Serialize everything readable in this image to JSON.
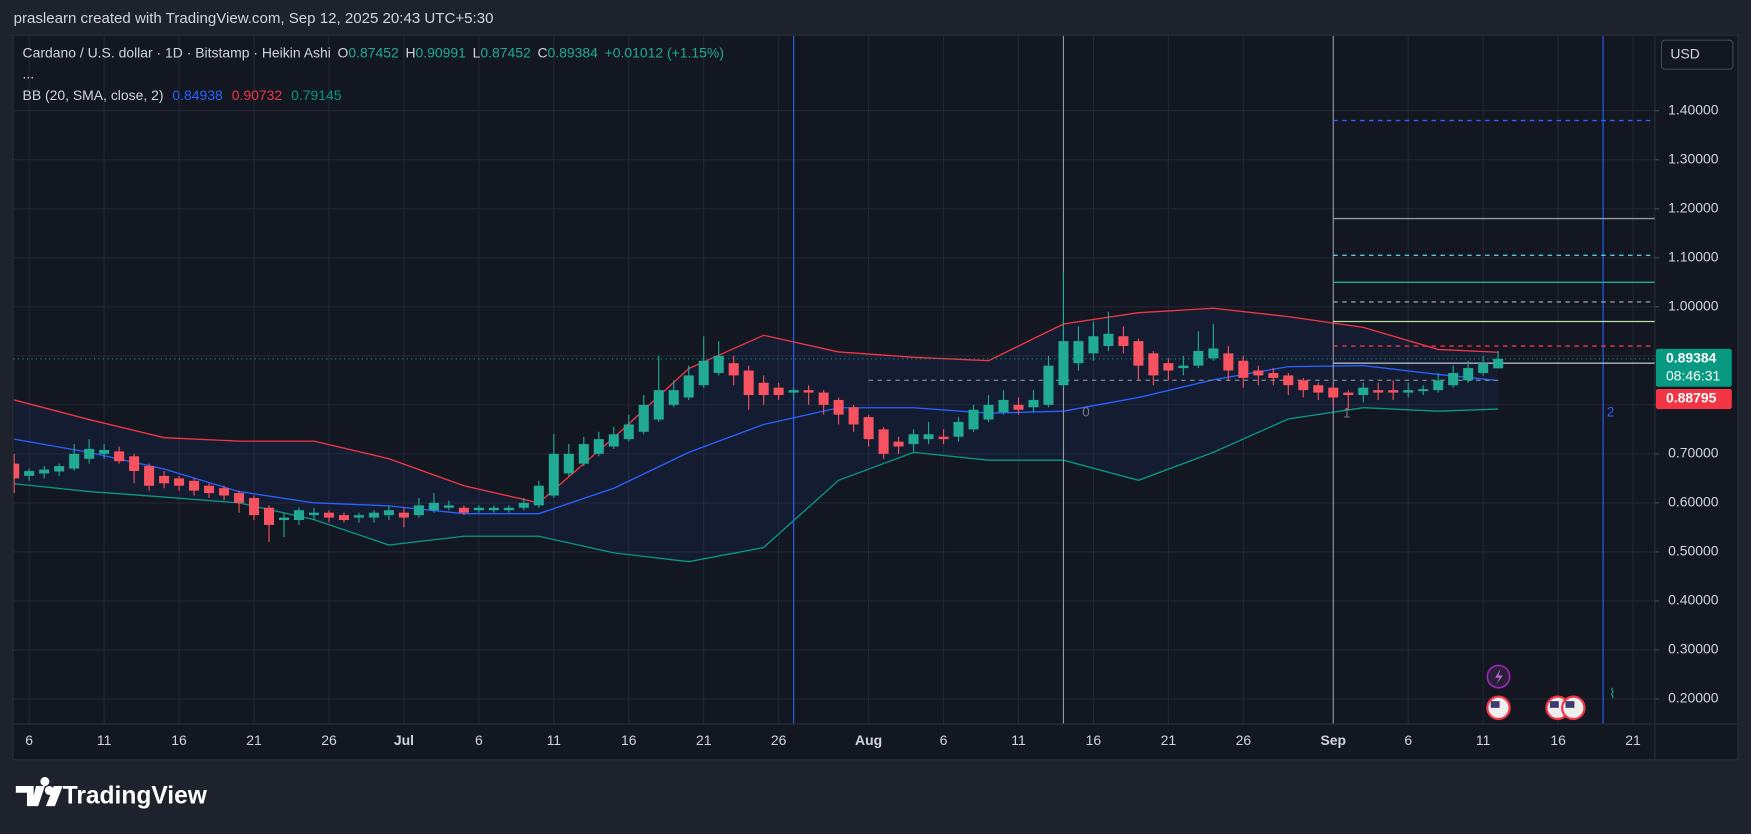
{
  "header": {
    "credit": "praslearn created with TradingView.com, Sep 12, 2025 20:43 UTC+5:30",
    "brand": "TradingView"
  },
  "chart_data": {
    "type": "candlestick",
    "title": "Cardano / U.S. dollar · 1D · Bitstamp · Heikin Ashi",
    "legend_keys": [
      "O",
      "H",
      "L",
      "C"
    ],
    "change": "+0.01012 (+1.15%)",
    "more": "...",
    "currency": "USD",
    "categories": [
      null,
      "6",
      null,
      null,
      null,
      null,
      "11",
      null,
      null,
      null,
      null,
      "16",
      null,
      null,
      null,
      null,
      "21",
      null,
      null,
      null,
      null,
      "26",
      null,
      null,
      null,
      null,
      "Jul",
      null,
      null,
      null,
      null,
      "6",
      null,
      null,
      null,
      null,
      "11",
      null,
      null,
      null,
      null,
      "16",
      null,
      null,
      null,
      null,
      "21",
      null,
      null,
      null,
      null,
      "26",
      null,
      null,
      null,
      null,
      null,
      "Aug",
      null,
      null,
      null,
      null,
      "6",
      null,
      null,
      null,
      null,
      "11",
      null,
      null,
      null,
      null,
      "16",
      null,
      null,
      null,
      null,
      "21",
      null,
      null,
      null,
      null,
      "26",
      null,
      null,
      null,
      null,
      null,
      "Sep",
      null,
      null,
      null,
      null,
      "6",
      null,
      null,
      null,
      null,
      "11",
      null,
      null,
      null,
      null,
      "16",
      null,
      null,
      null,
      null,
      "21"
    ],
    "open": [
      0.68,
      0.655,
      0.66,
      0.664,
      0.67,
      0.69,
      0.7,
      0.705,
      0.695,
      0.675,
      0.655,
      0.65,
      0.645,
      0.635,
      0.63,
      0.62,
      0.61,
      0.59,
      0.565,
      0.565,
      0.575,
      0.58,
      0.575,
      0.57,
      0.57,
      0.575,
      0.58,
      0.575,
      0.585,
      0.59,
      0.59,
      0.585,
      0.585,
      0.585,
      0.59,
      0.595,
      0.615,
      0.66,
      0.68,
      0.7,
      0.715,
      0.73,
      0.745,
      0.77,
      0.8,
      0.815,
      0.84,
      0.865,
      0.885,
      0.87,
      0.845,
      0.835,
      0.825,
      0.83,
      0.825,
      0.81,
      0.795,
      0.775,
      0.75,
      0.725,
      0.72,
      0.73,
      0.735,
      0.735,
      0.75,
      0.77,
      0.785,
      0.8,
      0.795,
      0.8,
      0.84,
      0.885,
      0.905,
      0.92,
      0.94,
      0.93,
      0.905,
      0.885,
      0.875,
      0.88,
      0.895,
      0.905,
      0.89,
      0.87,
      0.865,
      0.86,
      0.85,
      0.84,
      0.835,
      0.825,
      0.82,
      0.83,
      0.83,
      0.825,
      0.828,
      0.83,
      0.84,
      0.85,
      0.865,
      0.87452,
      null,
      null,
      null,
      null,
      null,
      null,
      null,
      null,
      null
    ],
    "high": [
      0.7,
      0.67,
      0.675,
      0.68,
      0.72,
      0.73,
      0.72,
      0.715,
      0.7,
      0.68,
      0.665,
      0.655,
      0.65,
      0.64,
      0.635,
      0.625,
      0.615,
      0.595,
      0.58,
      0.59,
      0.59,
      0.585,
      0.58,
      0.58,
      0.585,
      0.595,
      0.59,
      0.61,
      0.62,
      0.605,
      0.595,
      0.595,
      0.595,
      0.595,
      0.61,
      0.645,
      0.74,
      0.72,
      0.735,
      0.745,
      0.755,
      0.78,
      0.82,
      0.9,
      0.85,
      0.88,
      0.94,
      0.93,
      0.9,
      0.88,
      0.86,
      0.845,
      0.835,
      0.84,
      0.83,
      0.815,
      0.8,
      0.78,
      0.755,
      0.735,
      0.75,
      0.765,
      0.75,
      0.775,
      0.8,
      0.82,
      0.83,
      0.815,
      0.83,
      0.9,
      1.07,
      0.96,
      0.97,
      0.99,
      0.96,
      0.935,
      0.91,
      0.895,
      0.9,
      0.95,
      0.965,
      0.92,
      0.9,
      0.88,
      0.875,
      0.865,
      0.855,
      0.845,
      0.84,
      0.83,
      0.845,
      0.845,
      0.85,
      0.845,
      0.84,
      0.865,
      0.88,
      0.89,
      0.9,
      0.90991,
      null,
      null,
      null,
      null,
      null,
      null,
      null,
      null,
      null
    ],
    "low": [
      0.62,
      0.645,
      0.65,
      0.655,
      0.665,
      0.68,
      0.69,
      0.68,
      0.64,
      0.625,
      0.63,
      0.625,
      0.615,
      0.61,
      0.605,
      0.58,
      0.565,
      0.52,
      0.53,
      0.555,
      0.565,
      0.56,
      0.56,
      0.56,
      0.56,
      0.565,
      0.55,
      0.57,
      0.58,
      0.585,
      0.575,
      0.58,
      0.58,
      0.58,
      0.585,
      0.59,
      0.61,
      0.655,
      0.675,
      0.695,
      0.71,
      0.725,
      0.74,
      0.765,
      0.795,
      0.81,
      0.835,
      0.86,
      0.84,
      0.79,
      0.8,
      0.81,
      0.81,
      0.8,
      0.78,
      0.76,
      0.745,
      0.715,
      0.69,
      0.7,
      0.705,
      0.72,
      0.72,
      0.725,
      0.745,
      0.765,
      0.78,
      0.78,
      0.785,
      0.795,
      0.835,
      0.87,
      0.89,
      0.91,
      0.905,
      0.85,
      0.84,
      0.85,
      0.86,
      0.875,
      0.89,
      0.85,
      0.835,
      0.84,
      0.84,
      0.82,
      0.815,
      0.81,
      0.8,
      0.79,
      0.805,
      0.81,
      0.81,
      0.815,
      0.82,
      0.825,
      0.835,
      0.845,
      0.86,
      0.87452,
      null,
      null,
      null,
      null,
      null,
      null,
      null,
      null,
      null
    ],
    "close": [
      0.65,
      0.665,
      0.668,
      0.675,
      0.7,
      0.71,
      0.708,
      0.685,
      0.665,
      0.635,
      0.64,
      0.635,
      0.625,
      0.62,
      0.615,
      0.6,
      0.575,
      0.555,
      0.57,
      0.585,
      0.58,
      0.57,
      0.565,
      0.575,
      0.58,
      0.585,
      0.57,
      0.595,
      0.6,
      0.595,
      0.58,
      0.59,
      0.59,
      0.59,
      0.6,
      0.635,
      0.7,
      0.7,
      0.72,
      0.73,
      0.74,
      0.76,
      0.8,
      0.83,
      0.83,
      0.86,
      0.89,
      0.9,
      0.86,
      0.82,
      0.82,
      0.82,
      0.83,
      0.825,
      0.8,
      0.78,
      0.76,
      0.73,
      0.7,
      0.715,
      0.74,
      0.74,
      0.73,
      0.765,
      0.79,
      0.8,
      0.81,
      0.79,
      0.81,
      0.88,
      0.93,
      0.93,
      0.94,
      0.945,
      0.92,
      0.88,
      0.86,
      0.87,
      0.88,
      0.91,
      0.915,
      0.87,
      0.855,
      0.86,
      0.855,
      0.84,
      0.83,
      0.825,
      0.815,
      0.82,
      0.835,
      0.825,
      0.825,
      0.83,
      0.832,
      0.85,
      0.865,
      0.875,
      0.885,
      0.89384,
      null,
      null,
      null,
      null,
      null,
      null,
      null,
      null,
      null
    ],
    "up_color": "#22ab94",
    "down_color": "#f7525f",
    "xlim": [
      -0.04,
      109.45
    ],
    "ylim": [
      0.15,
      1.553
    ],
    "yticks": [
      {
        "value": 0.2,
        "label": "0.20000"
      },
      {
        "value": 0.3,
        "label": "0.30000"
      },
      {
        "value": 0.4,
        "label": "0.40000"
      },
      {
        "value": 0.5,
        "label": "0.50000"
      },
      {
        "value": 0.6,
        "label": "0.60000"
      },
      {
        "value": 0.7,
        "label": "0.70000"
      },
      {
        "value": 0.8,
        "label": "0.80000"
      },
      {
        "value": 0.9,
        "label": "0.90000"
      },
      {
        "value": 1.0,
        "label": "1.00000"
      },
      {
        "value": 1.1,
        "label": "1.10000"
      },
      {
        "value": 1.2,
        "label": "1.20000"
      },
      {
        "value": 1.3,
        "label": "1.30000"
      },
      {
        "value": 1.4,
        "label": "1.40000"
      }
    ],
    "grid": true,
    "bollinger": {
      "name": "BB (20, SMA, close, 2)",
      "x": [
        0,
        5,
        10,
        15,
        20,
        25,
        30,
        35,
        40,
        45,
        50,
        55,
        60,
        65,
        70,
        75,
        80,
        85,
        90,
        95,
        99
      ],
      "basis": [
        0.73,
        0.703,
        0.669,
        0.623,
        0.6,
        0.594,
        0.578,
        0.578,
        0.63,
        0.703,
        0.76,
        0.794,
        0.794,
        0.783,
        0.787,
        0.815,
        0.851,
        0.878,
        0.88,
        0.862,
        0.84938
      ],
      "upper": [
        0.81,
        0.77,
        0.733,
        0.726,
        0.726,
        0.69,
        0.635,
        0.6,
        0.733,
        0.874,
        0.942,
        0.908,
        0.897,
        0.89,
        0.965,
        0.988,
        0.997,
        0.98,
        0.958,
        0.913,
        0.90732
      ],
      "lower": [
        0.639,
        0.623,
        0.612,
        0.6,
        0.566,
        0.514,
        0.532,
        0.532,
        0.498,
        0.48,
        0.509,
        0.646,
        0.703,
        0.687,
        0.687,
        0.646,
        0.703,
        0.771,
        0.794,
        0.787,
        0.79145
      ],
      "basis_color": "#2962ff",
      "upper_color": "#f23645",
      "lower_color": "#089981",
      "fill": "#2962ff"
    },
    "levels": [
      {
        "value": 1.38,
        "color": "#2962ff",
        "dash": true,
        "from": 88
      },
      {
        "value": 1.18,
        "color": "#9598a1",
        "dash": false,
        "from": 88
      },
      {
        "value": 1.105,
        "color": "#5ec5d6",
        "dash": true,
        "from": 88
      },
      {
        "value": 1.05,
        "color": "#22ab94",
        "dash": false,
        "from": 88
      },
      {
        "value": 1.01,
        "color": "#9598a1",
        "dash": true,
        "from": 88
      },
      {
        "value": 0.97,
        "color": "#b6e3a4",
        "dash": false,
        "from": 88
      },
      {
        "value": 0.92,
        "color": "#f23645",
        "dash": true,
        "from": 88
      },
      {
        "value": 0.885,
        "color": "#b2b5be",
        "dash": false,
        "from": 88
      },
      {
        "value": 0.85,
        "color": "#787b86",
        "dash": true,
        "from": 57,
        "to": 99
      }
    ],
    "vlines": [
      {
        "x": 52,
        "color": "#2962ff"
      },
      {
        "x": 70,
        "color": "#9598a1"
      },
      {
        "x": 88,
        "color": "#9598a1"
      },
      {
        "x": 106,
        "color": "#2962ff"
      }
    ],
    "annotations": [
      {
        "text": "0",
        "x": 71.5,
        "y": 0.783,
        "color": "#787b86"
      },
      {
        "text": "1",
        "x": 88.9,
        "y": 0.781,
        "color": "#787b86"
      },
      {
        "text": "2",
        "x": 106.5,
        "y": 0.783,
        "color": "#2962ff"
      }
    ],
    "price_tags": [
      {
        "value": 0.89384,
        "color": "#089981",
        "countdown": "08:46:31"
      },
      {
        "value": 0.88795,
        "color": "#f23645"
      }
    ]
  }
}
